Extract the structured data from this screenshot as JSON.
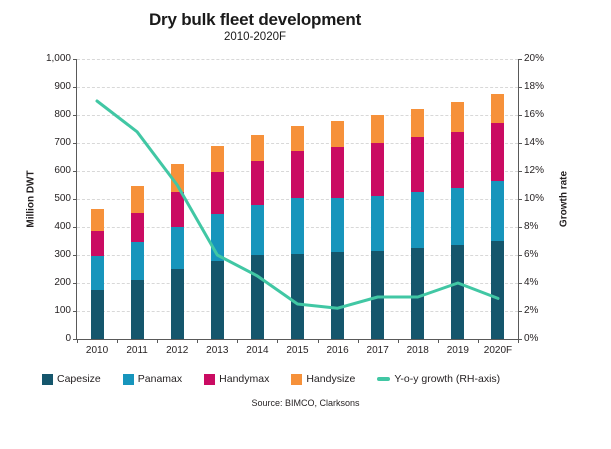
{
  "chart_data": {
    "type": "bar",
    "stacked": true,
    "combo_line": true,
    "title": "Dry bulk fleet development",
    "subtitle": "2010-2020F",
    "source": "Source: BIMCO, Clarksons",
    "categories": [
      "2010",
      "2011",
      "2012",
      "2013",
      "2014",
      "2015",
      "2016",
      "2017",
      "2018",
      "2019",
      "2020F"
    ],
    "series": [
      {
        "name": "Capesize",
        "color": "#15566C",
        "values": [
          175,
          210,
          250,
          280,
          300,
          305,
          310,
          315,
          325,
          335,
          350
        ]
      },
      {
        "name": "Panamax",
        "color": "#1795BC",
        "values": [
          120,
          135,
          150,
          165,
          180,
          200,
          195,
          195,
          200,
          205,
          215
        ]
      },
      {
        "name": "Handymax",
        "color": "#CA0B62",
        "values": [
          90,
          105,
          125,
          150,
          155,
          165,
          180,
          190,
          195,
          200,
          205
        ]
      },
      {
        "name": "Handysize",
        "color": "#F6913A",
        "values": [
          80,
          95,
          100,
          95,
          95,
          90,
          95,
          100,
          100,
          105,
          105
        ]
      }
    ],
    "bar_totals": [
      465,
      545,
      625,
      690,
      730,
      760,
      780,
      800,
      820,
      845,
      875
    ],
    "line_series": {
      "name": "Y-o-y growth (RH-axis)",
      "color": "#41C7A4",
      "axis": "right",
      "values": [
        17.0,
        14.8,
        11.0,
        6.0,
        4.5,
        2.5,
        2.2,
        3.0,
        3.0,
        4.0,
        2.9
      ]
    },
    "left_axis": {
      "label": "Million DWT",
      "min": 0,
      "max": 1000,
      "step": 100,
      "ticks": [
        "0",
        "100",
        "200",
        "300",
        "400",
        "500",
        "600",
        "700",
        "800",
        "900",
        "1,000"
      ]
    },
    "right_axis": {
      "label": "Growth rate",
      "min": 0,
      "max": 20,
      "step": 2,
      "ticks": [
        "0%",
        "2%",
        "4%",
        "6%",
        "8%",
        "10%",
        "12%",
        "14%",
        "16%",
        "18%",
        "20%"
      ]
    },
    "grid": true,
    "legend_position": "bottom"
  }
}
